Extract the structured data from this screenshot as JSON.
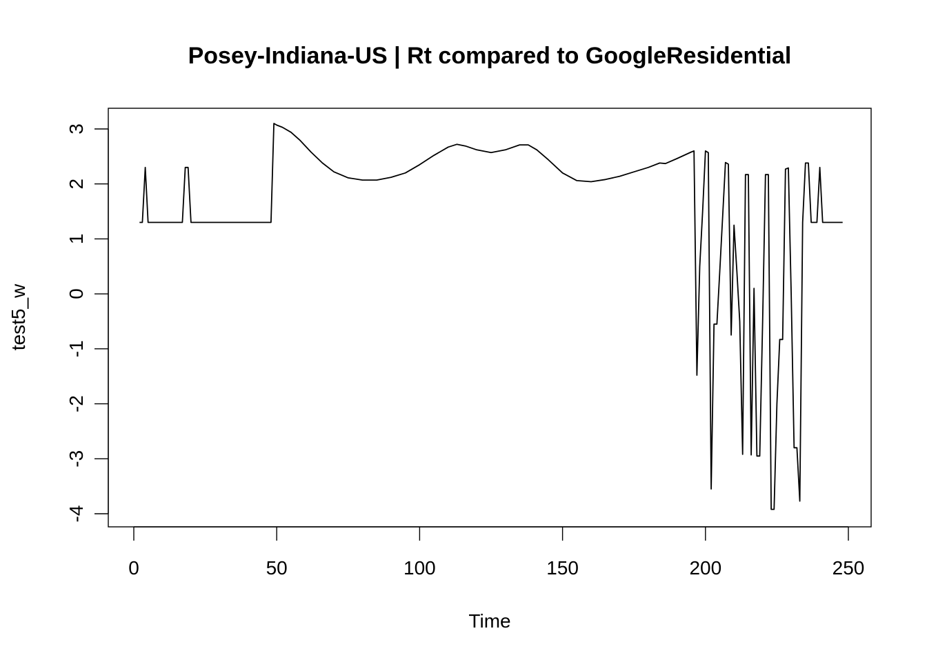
{
  "chart_data": {
    "type": "line",
    "title": "Posey-Indiana-US | Rt compared to GoogleResidential",
    "xlabel": "Time",
    "ylabel": "test5_w",
    "xlim": [
      0,
      250
    ],
    "ylim": [
      -4,
      3
    ],
    "x_ticks": [
      0,
      50,
      100,
      150,
      200,
      250
    ],
    "y_ticks": [
      -4,
      -3,
      -2,
      -1,
      0,
      1,
      2,
      3
    ],
    "grid": false,
    "legend": "none",
    "line_color": "#000000",
    "series": [
      {
        "x": [
          2,
          3,
          4,
          5,
          6,
          10,
          15,
          17,
          18,
          19,
          20,
          30,
          40,
          48,
          49,
          50,
          52,
          55,
          58,
          62,
          66,
          70,
          75,
          80,
          85,
          90,
          95,
          100,
          105,
          110,
          113,
          116,
          120,
          125,
          130,
          135,
          138,
          141,
          145,
          150,
          155,
          160,
          165,
          170,
          175,
          180,
          184,
          186,
          190,
          195,
          196,
          197,
          198,
          199,
          200,
          201,
          202,
          203,
          204,
          205,
          206,
          207,
          208,
          209,
          210,
          211,
          212,
          213,
          214,
          215,
          216,
          217,
          218,
          219,
          220,
          221,
          222,
          223,
          224,
          225,
          226,
          227,
          228,
          229,
          230,
          231,
          232,
          233,
          234,
          235,
          236,
          237,
          238,
          239,
          240,
          241,
          242,
          245,
          248
        ],
        "y": [
          1.3,
          1.3,
          2.3,
          1.3,
          1.3,
          1.3,
          1.3,
          1.3,
          2.3,
          2.3,
          1.3,
          1.3,
          1.3,
          1.3,
          3.1,
          3.07,
          3.03,
          2.94,
          2.8,
          2.58,
          2.38,
          2.22,
          2.11,
          2.07,
          2.07,
          2.12,
          2.2,
          2.35,
          2.52,
          2.67,
          2.72,
          2.69,
          2.62,
          2.57,
          2.62,
          2.71,
          2.71,
          2.62,
          2.44,
          2.2,
          2.06,
          2.04,
          2.08,
          2.14,
          2.22,
          2.3,
          2.38,
          2.37,
          2.46,
          2.58,
          2.6,
          -1.48,
          0.5,
          1.5,
          2.6,
          2.57,
          -3.55,
          -0.55,
          -0.55,
          0.4,
          1.4,
          2.39,
          2.36,
          -0.75,
          1.25,
          0.4,
          -0.5,
          -2.92,
          2.17,
          2.17,
          -2.93,
          0.1,
          -2.95,
          -2.95,
          -0.5,
          2.17,
          2.17,
          -3.92,
          -3.92,
          -2.0,
          -0.83,
          -0.83,
          2.27,
          2.29,
          0.0,
          -2.8,
          -2.8,
          -3.77,
          1.3,
          2.38,
          2.38,
          1.3,
          1.3,
          1.3,
          2.3,
          1.3,
          1.3,
          1.3,
          1.3
        ]
      }
    ]
  }
}
